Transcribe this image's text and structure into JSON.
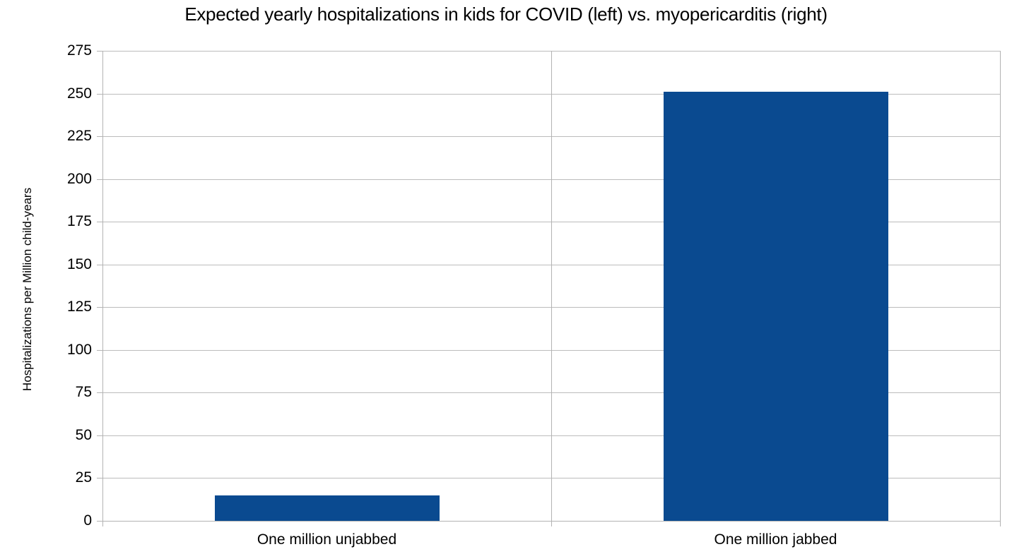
{
  "chart_data": {
    "type": "bar",
    "title": "Expected yearly hospitalizations in kids for COVID (left) vs. myopericarditis (right)",
    "categories": [
      "One million unjabbed",
      "One million jabbed"
    ],
    "values": [
      15,
      251
    ],
    "xlabel": "",
    "ylabel": "Hospitalizations per Million child-years",
    "ylim": [
      0,
      275
    ],
    "yticks": [
      0,
      25,
      50,
      75,
      100,
      125,
      150,
      175,
      200,
      225,
      250,
      275
    ],
    "grid": true,
    "legend": "none",
    "bar_color": "#0a4a90",
    "gridline_color": "#bcbcbc",
    "axis_color": "#b3b3b3",
    "text_color": "#000000",
    "background_color": "#ffffff"
  }
}
